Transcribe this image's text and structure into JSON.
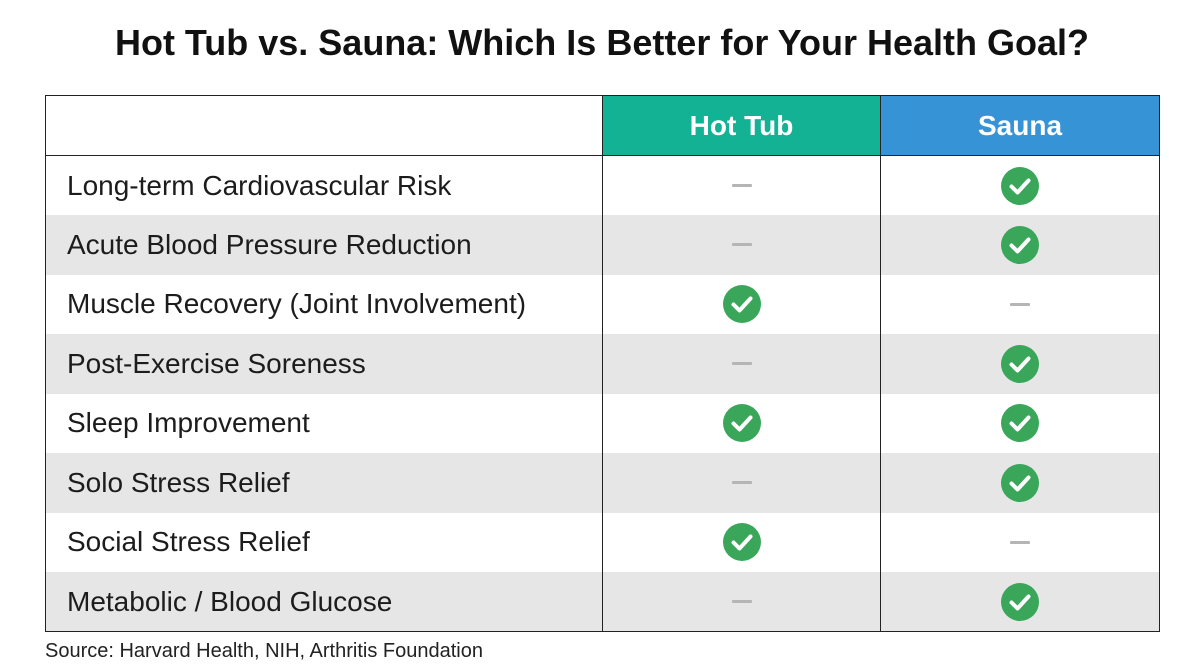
{
  "title": "Hot Tub vs. Sauna: Which Is Better for Your Health Goal?",
  "columns": {
    "hot_tub": "Hot Tub",
    "sauna": "Sauna"
  },
  "colors": {
    "hot_tub_header": "#14b294",
    "sauna_header": "#3593d6",
    "check": "#3aa65a",
    "dash": "#b5b5b5",
    "stripe": "#e6e6e6"
  },
  "icons": {
    "yes": "check-circle-icon",
    "no": "dash-icon"
  },
  "rows": [
    {
      "label": "Long-term Cardiovascular Risk",
      "hot_tub": false,
      "sauna": true
    },
    {
      "label": "Acute Blood Pressure Reduction",
      "hot_tub": false,
      "sauna": true
    },
    {
      "label": "Muscle Recovery (Joint Involvement)",
      "hot_tub": true,
      "sauna": false
    },
    {
      "label": "Post-Exercise Soreness",
      "hot_tub": false,
      "sauna": true
    },
    {
      "label": "Sleep Improvement",
      "hot_tub": true,
      "sauna": true
    },
    {
      "label": "Solo Stress Relief",
      "hot_tub": false,
      "sauna": true
    },
    {
      "label": "Social Stress Relief",
      "hot_tub": true,
      "sauna": false
    },
    {
      "label": "Metabolic / Blood Glucose",
      "hot_tub": false,
      "sauna": true
    }
  ],
  "source": "Source: Harvard Health, NIH, Arthritis Foundation"
}
